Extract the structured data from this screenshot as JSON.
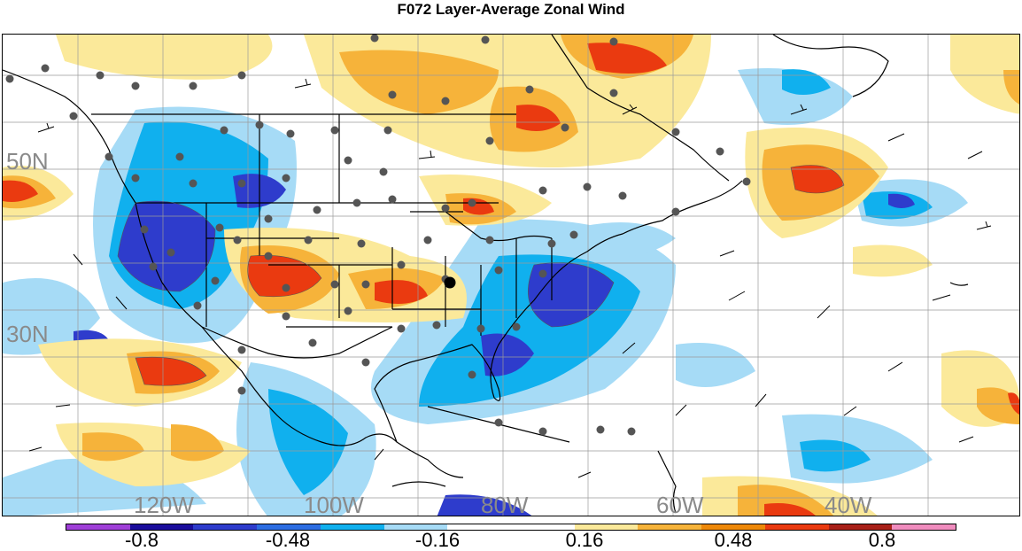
{
  "title": "F072 Layer-Average Zonal Wind",
  "lat_labels": [
    "50N",
    "30N"
  ],
  "lon_labels": [
    "120W",
    "100W",
    "80W",
    "60W",
    "40W"
  ],
  "colorbar": {
    "colors": [
      "#9f3fd8",
      "#1a0d9c",
      "#2e3ccc",
      "#2c6de2",
      "#10b0ee",
      "#a6dbf6",
      "#ffffff",
      "#ffffff",
      "#fbe99a",
      "#f6b33a",
      "#ee8808",
      "#ea3a10",
      "#a82018",
      "#f08cbe"
    ],
    "labels": [
      "-0.8",
      "-0.48",
      "-0.16",
      "0.16",
      "0.48",
      "0.8"
    ]
  }
}
